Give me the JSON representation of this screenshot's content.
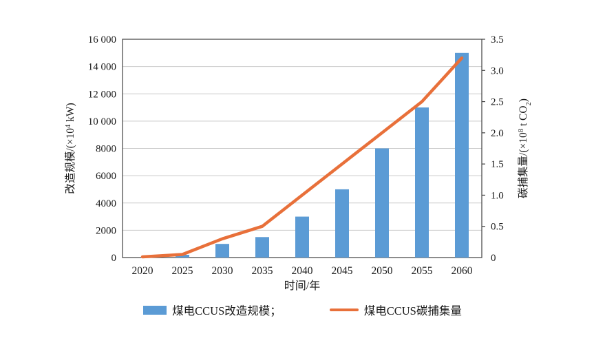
{
  "chart_data": {
    "type": "bar+line",
    "title": "",
    "categories": [
      "2020",
      "2025",
      "2030",
      "2035",
      "2040",
      "2045",
      "2050",
      "2055",
      "2060"
    ],
    "series": [
      {
        "name": "煤电CCUS改造规模",
        "type": "bar",
        "axis": "left",
        "values": [
          0,
          200,
          1000,
          1500,
          3000,
          5000,
          8000,
          11000,
          15000
        ],
        "color": "#5b9bd5"
      },
      {
        "name": "煤电CCUS碳捕集量",
        "type": "line",
        "axis": "right",
        "values": [
          0,
          0.05,
          0.3,
          0.5,
          1.0,
          1.5,
          2.0,
          2.5,
          3.2
        ],
        "color": "#e8703a"
      }
    ],
    "xlabel": "时间/年",
    "left_axis": {
      "label": "改造规模/(×10⁴ kW)",
      "label_pre": "改造规模/(×10",
      "label_sup": "4",
      "label_post": " kW)",
      "min": 0,
      "max": 16000,
      "tick_step": 2000,
      "tick_labels": [
        "0",
        "2000",
        "4000",
        "6000",
        "8000",
        "10 000",
        "12 000",
        "14 000",
        "16 000"
      ]
    },
    "right_axis": {
      "label": "碳捕集量/(×10⁸ t CO₂)",
      "label_pre": "碳捕集量/(×10",
      "label_sup": "8",
      "label_mid": " t CO",
      "label_sub": "2",
      "label_post": ")",
      "min": 0,
      "max": 3.5,
      "tick_step": 0.5,
      "tick_labels": [
        "0",
        "0.5",
        "1.0",
        "1.5",
        "2.0",
        "2.5",
        "3.0",
        "3.5"
      ]
    },
    "grid": true,
    "legend_position": "bottom",
    "legend": [
      {
        "label": "煤电CCUS改造规模；",
        "swatch": "bar"
      },
      {
        "label": "煤电CCUS碳捕集量",
        "swatch": "line"
      }
    ]
  },
  "colors": {
    "bar": "#5b9bd5",
    "line": "#e8703a",
    "grid": "#c9c9c9",
    "axis": "#404040",
    "text": "#1a1a1a",
    "background": "#ffffff"
  }
}
